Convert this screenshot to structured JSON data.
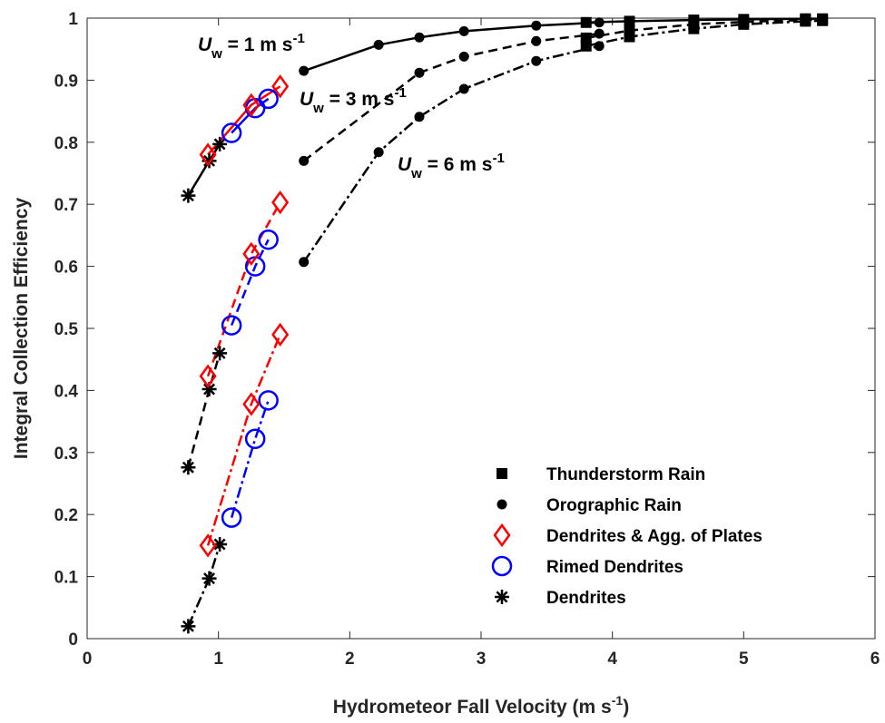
{
  "chart_data": {
    "type": "line",
    "xlabel": [
      "Hydrometeor Fall Velocity (m s",
      "-1",
      ")"
    ],
    "ylabel": "Integral Collection Efficiency",
    "xlim": [
      0,
      6
    ],
    "ylim": [
      0,
      1
    ],
    "xticks": [
      0,
      1,
      2,
      3,
      4,
      5,
      6
    ],
    "yticks": [
      0,
      0.1,
      0.2,
      0.3,
      0.4,
      0.5,
      0.6,
      0.7,
      0.8,
      0.9,
      1
    ],
    "annotations": [
      [
        "U",
        "w",
        " = 1 m s",
        "-1"
      ],
      [
        "U",
        "w",
        " = 3 m s",
        "-1"
      ],
      [
        "U",
        "w",
        " = 6 m s",
        "-1"
      ]
    ],
    "legend": [
      {
        "name": "Thunderstorm Rain",
        "marker": "square",
        "color": "#000000"
      },
      {
        "name": "Orographic Rain",
        "marker": "dot",
        "color": "#000000"
      },
      {
        "name": "Dendrites & Agg. of Plates",
        "marker": "diamond",
        "color": "#ff0000"
      },
      {
        "name": "Rimed Dendrites",
        "marker": "circle",
        "color": "#0000ff"
      },
      {
        "name": "Dendrites",
        "marker": "asterisk",
        "color": "#000000"
      }
    ],
    "series": [
      {
        "legend": 1,
        "line": "solid",
        "x": [
          1.65,
          2.22,
          2.53,
          2.87,
          3.42,
          3.9
        ],
        "y": [
          0.915,
          0.957,
          0.969,
          0.979,
          0.988,
          0.993
        ]
      },
      {
        "legend": 0,
        "line": "solid",
        "x": [
          3.8,
          4.13,
          4.62,
          5.0,
          5.47,
          5.6
        ],
        "y": [
          0.993,
          0.995,
          0.997,
          0.998,
          0.999,
          0.999
        ]
      },
      {
        "legend": 1,
        "line": "dashed",
        "x": [
          1.65,
          2.53,
          2.87,
          3.42,
          3.9
        ],
        "y": [
          0.77,
          0.912,
          0.938,
          0.963,
          0.975
        ]
      },
      {
        "legend": 0,
        "line": "dashed",
        "x": [
          3.8,
          4.13,
          4.62,
          5.0,
          5.47,
          5.6
        ],
        "y": [
          0.968,
          0.98,
          0.99,
          0.994,
          0.997,
          0.997
        ]
      },
      {
        "legend": 1,
        "line": "dashdot",
        "x": [
          1.65,
          2.22,
          2.53,
          2.87,
          3.42,
          3.9
        ],
        "y": [
          0.607,
          0.784,
          0.841,
          0.886,
          0.931,
          0.955
        ]
      },
      {
        "legend": 0,
        "line": "dashdot",
        "x": [
          3.8,
          4.13,
          4.62,
          5.0,
          5.47,
          5.6
        ],
        "y": [
          0.955,
          0.97,
          0.983,
          0.99,
          0.995,
          0.996
        ]
      },
      {
        "legend": 4,
        "line": "solid",
        "x": [
          0.77,
          0.93,
          1.01
        ],
        "y": [
          0.714,
          0.77,
          0.797
        ]
      },
      {
        "legend": 3,
        "line": "solid",
        "x": [
          1.1,
          1.28,
          1.38
        ],
        "y": [
          0.815,
          0.855,
          0.87
        ]
      },
      {
        "legend": 2,
        "line": "solid",
        "x": [
          0.92,
          1.25,
          1.47
        ],
        "y": [
          0.78,
          0.86,
          0.89
        ]
      },
      {
        "legend": 4,
        "line": "dashed",
        "x": [
          0.77,
          0.93,
          1.01
        ],
        "y": [
          0.276,
          0.402,
          0.46
        ]
      },
      {
        "legend": 3,
        "line": "dashed",
        "x": [
          1.1,
          1.28,
          1.38
        ],
        "y": [
          0.505,
          0.6,
          0.643
        ]
      },
      {
        "legend": 2,
        "line": "dashed",
        "x": [
          0.92,
          1.25,
          1.47
        ],
        "y": [
          0.423,
          0.62,
          0.703
        ]
      },
      {
        "legend": 4,
        "line": "dashdot",
        "x": [
          0.77,
          0.93,
          1.01
        ],
        "y": [
          0.02,
          0.097,
          0.152
        ]
      },
      {
        "legend": 3,
        "line": "dashdot",
        "x": [
          1.1,
          1.28,
          1.38
        ],
        "y": [
          0.195,
          0.322,
          0.384
        ]
      },
      {
        "legend": 2,
        "line": "dashdot",
        "x": [
          0.92,
          1.25,
          1.47
        ],
        "y": [
          0.15,
          0.378,
          0.49
        ]
      }
    ]
  }
}
